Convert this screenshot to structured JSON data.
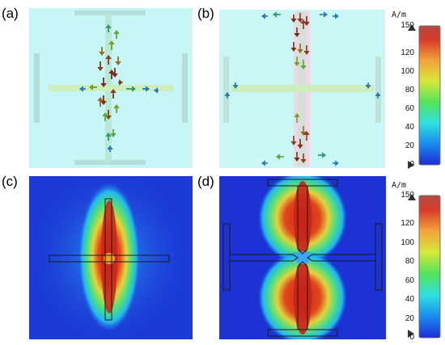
{
  "panels": [
    {
      "id": "a",
      "label": "(a)"
    },
    {
      "id": "b",
      "label": "(b)"
    },
    {
      "id": "c",
      "label": "(c)"
    },
    {
      "id": "d",
      "label": "(d)"
    }
  ],
  "colorbar": {
    "unit": "A/m",
    "ticks": [
      "150",
      "120",
      "100",
      "80",
      "60",
      "40",
      "20",
      "0"
    ],
    "min": 0,
    "max": 150,
    "colors": [
      "#1c2bd6",
      "#1a8cf0",
      "#2fe0e0",
      "#53e35a",
      "#d7e83b",
      "#f2a33a",
      "#d83a2a",
      "#b34a40"
    ]
  }
}
